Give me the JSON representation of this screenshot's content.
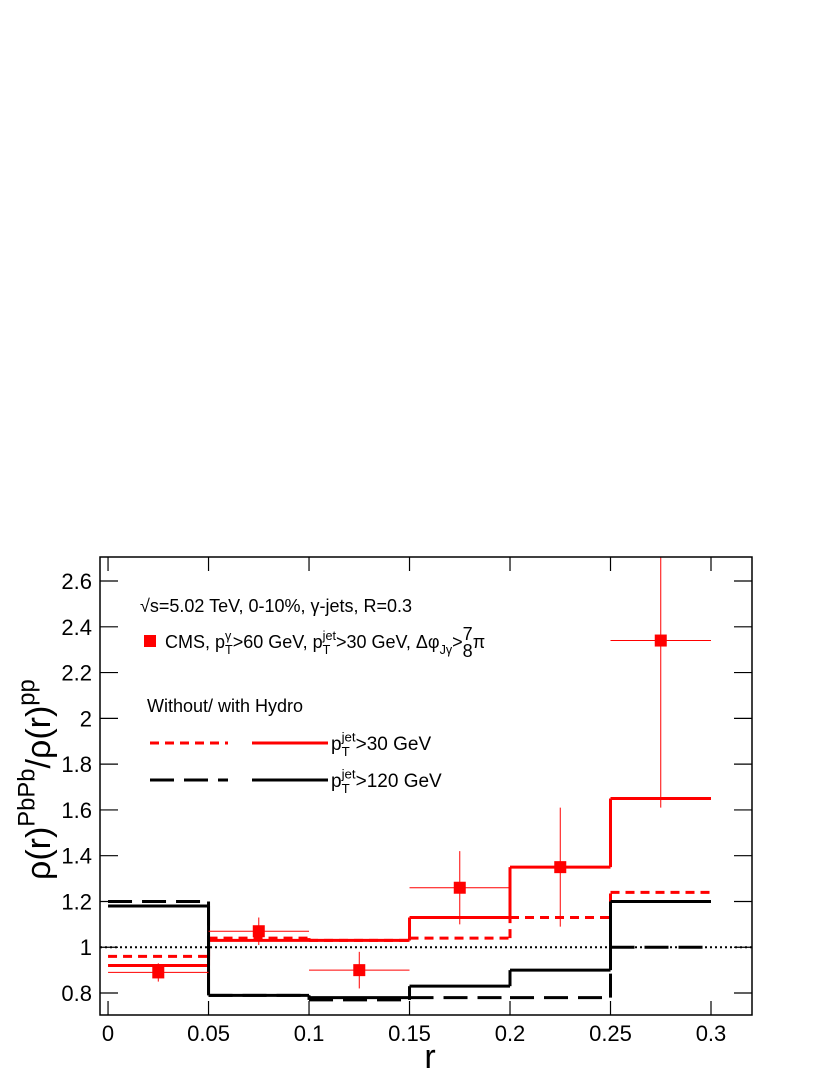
{
  "chart_data": {
    "type": "step",
    "xlabel": "r",
    "ylabel": [
      {
        "text": "ρ(r)"
      },
      {
        "text": "PbPb",
        "pos": "sup"
      },
      {
        "text": "/ρ(r)"
      },
      {
        "text": "pp",
        "pos": "sup"
      }
    ],
    "annotation": "√s=5.02 TeV, 0-10%, γ-jets, R=0.3",
    "legend_title": "Without/  with Hydro",
    "xlim": [
      -0.004,
      0.3204
    ],
    "ylim": [
      0.704,
      2.705
    ],
    "xticks": [
      0,
      0.05,
      0.1,
      0.15,
      0.2,
      0.25,
      0.3
    ],
    "yticks": [
      0.8,
      1,
      1.2,
      1.4,
      1.6,
      1.8,
      2,
      2.2,
      2.4,
      2.6
    ],
    "hline": 1,
    "bins": [
      0,
      0.05,
      0.1,
      0.15,
      0.2,
      0.25,
      0.3
    ],
    "series": [
      {
        "label": [
          {
            "text": "p"
          },
          {
            "text": "jet",
            "pos": "sup"
          },
          {
            "text": "T",
            "pos": "sub"
          },
          {
            "text": ">30 GeV"
          }
        ],
        "color": "#ff0000",
        "dash": "9,6",
        "without_hydro": [
          0.96,
          1.04,
          1.03,
          1.04,
          1.13,
          1.24
        ],
        "with_hydro": [
          0.92,
          1.03,
          1.03,
          1.13,
          1.35,
          1.65
        ]
      },
      {
        "label": [
          {
            "text": "p"
          },
          {
            "text": "jet",
            "pos": "sup"
          },
          {
            "text": "T",
            "pos": "sub"
          },
          {
            "text": ">120 GeV"
          }
        ],
        "color": "#000000",
        "dash": "24,10",
        "without_hydro": [
          1.2,
          0.79,
          0.77,
          0.78,
          0.78,
          1.0
        ],
        "with_hydro": [
          1.18,
          0.79,
          0.78,
          0.83,
          0.9,
          1.2
        ]
      }
    ],
    "points": {
      "name": [
        {
          "text": "CMS, p"
        },
        {
          "text": "γ",
          "pos": "sup"
        },
        {
          "text": "T",
          "pos": "sub"
        },
        {
          "text": ">60 GeV, p"
        },
        {
          "text": "jet",
          "pos": "sup"
        },
        {
          "text": "T",
          "pos": "sub"
        },
        {
          "text": ">30 GeV, Δφ"
        },
        {
          "text": "Jγ",
          "pos": "sub"
        },
        {
          "text": ">"
        },
        {
          "text": "7",
          "pos": "num"
        },
        {
          "text": "8",
          "pos": "den"
        },
        {
          "text": "π"
        }
      ],
      "color": "#ff0000",
      "x": [
        0.025,
        0.075,
        0.125,
        0.175,
        0.225,
        0.275
      ],
      "xerr": [
        0.025,
        0.025,
        0.025,
        0.025,
        0.025,
        0.025
      ],
      "values": [
        0.89,
        1.07,
        0.9,
        1.26,
        1.35,
        2.34
      ],
      "errors": [
        0.04,
        0.06,
        0.08,
        0.16,
        0.26,
        0.73
      ]
    }
  }
}
